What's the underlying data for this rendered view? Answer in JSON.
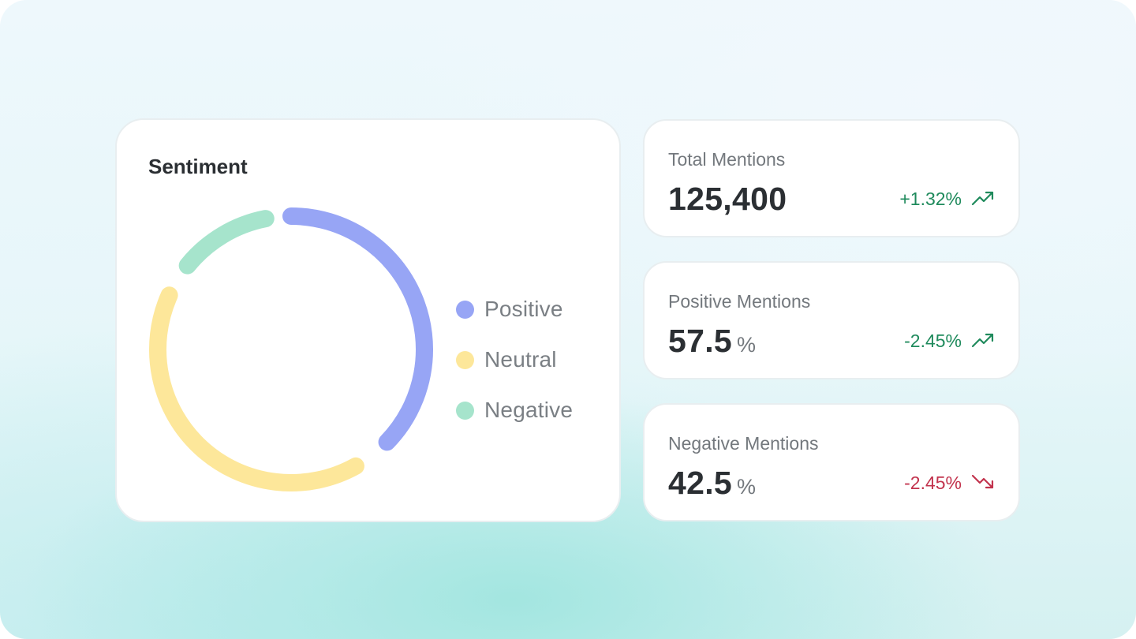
{
  "sentiment": {
    "title": "Sentiment",
    "legend": [
      {
        "label": "Positive",
        "color": "#97a5f5"
      },
      {
        "label": "Neutral",
        "color": "#fde79a"
      },
      {
        "label": "Negative",
        "color": "#a6e4cc"
      }
    ]
  },
  "chart_data": {
    "type": "pie",
    "title": "Sentiment",
    "slices": [
      {
        "label": "Positive",
        "color": "#97a5f5"
      },
      {
        "label": "Neutral",
        "color": "#fde79a"
      },
      {
        "label": "Negative",
        "color": "#a6e4cc"
      }
    ],
    "legend_position": "right"
  },
  "stats": {
    "total": {
      "label": "Total Mentions",
      "value": "125,400",
      "unit": "",
      "change": "+1.32%",
      "trend": "up",
      "color": "#1f8a5c"
    },
    "positive": {
      "label": "Positive Mentions",
      "value": "57.5",
      "unit": "%",
      "change": "-2.45%",
      "trend": "up",
      "color": "#1f8a5c"
    },
    "negative": {
      "label": "Negative Mentions",
      "value": "42.5",
      "unit": "%",
      "change": "-2.45%",
      "trend": "down",
      "color": "#c2334d"
    }
  }
}
